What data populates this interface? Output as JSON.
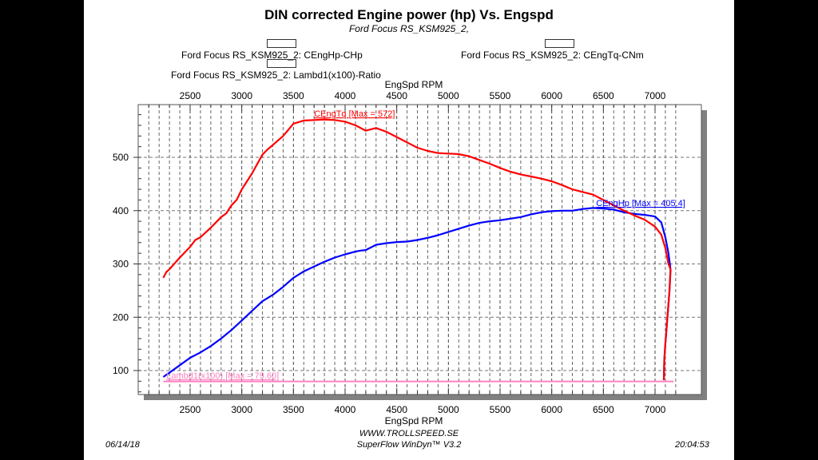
{
  "header": {
    "title": "DIN corrected Engine power (hp) Vs. Engspd",
    "subtitle": "Ford Focus RS_KSM925_2,"
  },
  "legend": [
    {
      "label": "Ford Focus RS_KSM925_2: CEngHp-CHp",
      "color": "#0000ff"
    },
    {
      "label": "Ford Focus RS_KSM925_2: CEngTq-CNm",
      "color": "#ff0000"
    },
    {
      "label": "Ford Focus RS_KSM925_2: Lambd1(x100)-Ratio",
      "color": "#ff80c0"
    }
  ],
  "footer": {
    "website": "WWW.TROLLSPEED.SE",
    "software": "SuperFlow WinDyn™ V3.2",
    "date": "06/14/18",
    "time": "20:04:53"
  },
  "chart_data": {
    "type": "line",
    "title": "DIN corrected Engine power (hp) Vs. Engspd",
    "subtitle": "Ford Focus RS_KSM925_2,",
    "xlabel": "EngSpd RPM",
    "x_top_label": "EngSpd RPM",
    "ylabel": "",
    "xlim": [
      2000,
      7200
    ],
    "ylim": [
      50,
      600
    ],
    "xticks": [
      2500,
      3000,
      3500,
      4000,
      4500,
      5000,
      5500,
      6000,
      6500,
      7000
    ],
    "yticks": [
      100,
      200,
      300,
      400,
      500
    ],
    "grid": true,
    "legend_position": "top",
    "series": [
      {
        "name": "CEngHp",
        "legend": "Ford Focus RS_KSM925_2: CEngHp-CHp",
        "color": "#0000ff",
        "annotation": "CEngHp [Max = 405.4]",
        "points": [
          [
            2240,
            88
          ],
          [
            2300,
            96
          ],
          [
            2400,
            110
          ],
          [
            2500,
            124
          ],
          [
            2600,
            134
          ],
          [
            2700,
            146
          ],
          [
            2800,
            160
          ],
          [
            2900,
            176
          ],
          [
            3000,
            194
          ],
          [
            3100,
            212
          ],
          [
            3200,
            230
          ],
          [
            3300,
            242
          ],
          [
            3400,
            257
          ],
          [
            3500,
            274
          ],
          [
            3600,
            286
          ],
          [
            3700,
            295
          ],
          [
            3800,
            304
          ],
          [
            3900,
            312
          ],
          [
            4000,
            318
          ],
          [
            4100,
            323
          ],
          [
            4150,
            325
          ],
          [
            4200,
            326
          ],
          [
            4300,
            336
          ],
          [
            4400,
            339
          ],
          [
            4500,
            341
          ],
          [
            4600,
            342
          ],
          [
            4700,
            345
          ],
          [
            4800,
            349
          ],
          [
            4900,
            354
          ],
          [
            5000,
            360
          ],
          [
            5100,
            366
          ],
          [
            5200,
            372
          ],
          [
            5300,
            377
          ],
          [
            5400,
            380
          ],
          [
            5500,
            382
          ],
          [
            5600,
            385
          ],
          [
            5700,
            388
          ],
          [
            5800,
            393
          ],
          [
            5900,
            397
          ],
          [
            6000,
            399
          ],
          [
            6100,
            400
          ],
          [
            6200,
            400
          ],
          [
            6300,
            403
          ],
          [
            6400,
            405
          ],
          [
            6500,
            404
          ],
          [
            6600,
            402
          ],
          [
            6700,
            397
          ],
          [
            6800,
            394
          ],
          [
            6900,
            392
          ],
          [
            7000,
            389
          ],
          [
            7060,
            378
          ],
          [
            7100,
            350
          ],
          [
            7130,
            320
          ],
          [
            7150,
            290
          ],
          [
            7140,
            250
          ],
          [
            7120,
            200
          ],
          [
            7100,
            150
          ],
          [
            7090,
            120
          ],
          [
            7085,
            82
          ]
        ]
      },
      {
        "name": "CEngTq",
        "legend": "Ford Focus RS_KSM925_2: CEngTq-CNm",
        "color": "#ff0000",
        "annotation": "CEngTq [Max = 572]",
        "points": [
          [
            2240,
            274
          ],
          [
            2270,
            285
          ],
          [
            2300,
            290
          ],
          [
            2400,
            312
          ],
          [
            2500,
            332
          ],
          [
            2550,
            345
          ],
          [
            2600,
            350
          ],
          [
            2700,
            368
          ],
          [
            2800,
            388
          ],
          [
            2850,
            395
          ],
          [
            2900,
            410
          ],
          [
            2950,
            420
          ],
          [
            3000,
            440
          ],
          [
            3100,
            470
          ],
          [
            3200,
            505
          ],
          [
            3250,
            515
          ],
          [
            3300,
            523
          ],
          [
            3400,
            540
          ],
          [
            3500,
            563
          ],
          [
            3600,
            569
          ],
          [
            3700,
            570
          ],
          [
            3800,
            571
          ],
          [
            3900,
            570
          ],
          [
            4000,
            567
          ],
          [
            4100,
            560
          ],
          [
            4200,
            550
          ],
          [
            4300,
            555
          ],
          [
            4400,
            548
          ],
          [
            4500,
            538
          ],
          [
            4600,
            528
          ],
          [
            4700,
            518
          ],
          [
            4800,
            512
          ],
          [
            4900,
            508
          ],
          [
            5000,
            507
          ],
          [
            5100,
            506
          ],
          [
            5200,
            502
          ],
          [
            5300,
            495
          ],
          [
            5400,
            488
          ],
          [
            5500,
            480
          ],
          [
            5600,
            473
          ],
          [
            5700,
            468
          ],
          [
            5800,
            464
          ],
          [
            5900,
            460
          ],
          [
            6000,
            455
          ],
          [
            6100,
            448
          ],
          [
            6200,
            440
          ],
          [
            6300,
            435
          ],
          [
            6400,
            430
          ],
          [
            6500,
            420
          ],
          [
            6600,
            410
          ],
          [
            6700,
            400
          ],
          [
            6800,
            391
          ],
          [
            6900,
            383
          ],
          [
            7000,
            370
          ],
          [
            7060,
            355
          ],
          [
            7100,
            330
          ],
          [
            7130,
            300
          ],
          [
            7150,
            290
          ],
          [
            7140,
            250
          ],
          [
            7120,
            200
          ],
          [
            7100,
            150
          ],
          [
            7090,
            120
          ],
          [
            7085,
            82
          ]
        ]
      },
      {
        "name": "Lambd1(x100)",
        "legend": "Ford Focus RS_KSM925_2: Lambd1(x100)-Ratio",
        "color": "#ff80c0",
        "annotation": "Lambd1(x100) [Max = 79.60]",
        "points": [
          [
            2240,
            79.6
          ],
          [
            7180,
            79.6
          ]
        ]
      }
    ]
  }
}
